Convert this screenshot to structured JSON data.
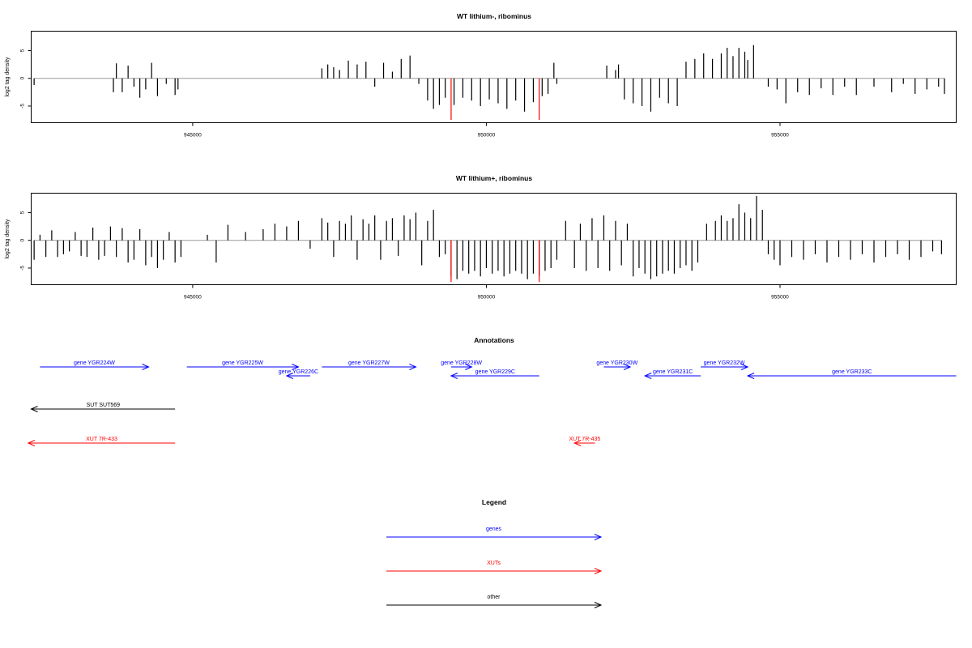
{
  "chart_data": [
    {
      "type": "bar",
      "title": "WT lithium-, ribominus",
      "ylabel": "log2 tag density",
      "xlabel": "",
      "xlim": [
        942250,
        958000
      ],
      "ylim": [
        -8,
        8.5
      ],
      "xticks": [
        945000,
        950000,
        955000
      ],
      "yticks": [
        5,
        0,
        -5
      ],
      "grid": false,
      "series": [
        {
          "color": "#000000",
          "x": [
            942300,
            943650,
            943700,
            943800,
            943900,
            944000,
            944100,
            944200,
            944300,
            944400,
            944550,
            944700,
            944750,
            947200,
            947300,
            947400,
            947500,
            947650,
            947800,
            947950,
            948100,
            948250,
            948400,
            948550,
            948700,
            948850,
            949000,
            949100,
            949200,
            949300,
            949450,
            949600,
            949750,
            949900,
            950050,
            950200,
            950350,
            950500,
            950650,
            950800,
            950950,
            951050,
            951150,
            951200,
            952050,
            952200,
            952250,
            952350,
            952500,
            952650,
            952800,
            952950,
            953100,
            953250,
            953400,
            953550,
            953700,
            953850,
            954000,
            954100,
            954200,
            954300,
            954400,
            954450,
            954550,
            954800,
            954950,
            955100,
            955300,
            955500,
            955700,
            955900,
            956100,
            956300,
            956600,
            956900,
            957100,
            957300,
            957500,
            957700,
            957800
          ],
          "values": [
            -1.2,
            -2.5,
            2.7,
            -2.5,
            2.3,
            -1.5,
            -3.5,
            -2.0,
            2.8,
            -3.2,
            -1.0,
            -3.0,
            -2.0,
            1.8,
            2.5,
            2.0,
            1.5,
            3.2,
            2.5,
            3.0,
            -1.5,
            2.8,
            1.2,
            3.5,
            4.1,
            -1.0,
            -4.0,
            -5.5,
            -4.8,
            -3.5,
            -4.8,
            -3.5,
            -4.0,
            -5.0,
            -3.8,
            -4.5,
            -5.5,
            -4.0,
            -6.0,
            -4.3,
            -3.2,
            -2.8,
            2.8,
            -1.0,
            2.3,
            1.5,
            2.5,
            -3.8,
            -4.5,
            -5.0,
            -6.0,
            -3.5,
            -4.5,
            -5.0,
            3.0,
            3.5,
            4.5,
            3.5,
            4.5,
            5.5,
            4.0,
            5.5,
            4.8,
            3.3,
            6.0,
            -1.5,
            -2.0,
            -4.5,
            -2.5,
            -3.0,
            -1.8,
            -3.0,
            -1.5,
            -3.0,
            -1.5,
            -2.5,
            -1.0,
            -2.8,
            -2.0,
            -1.5,
            -2.8
          ]
        },
        {
          "color": "#ff0000",
          "x": [
            949400,
            950900
          ],
          "values": [
            -7.5,
            -7.5
          ]
        }
      ]
    },
    {
      "type": "bar",
      "title": "WT lithium+, ribominus",
      "ylabel": "log2 tag density",
      "xlabel": "",
      "xlim": [
        942250,
        958000
      ],
      "ylim": [
        -8,
        8.5
      ],
      "xticks": [
        945000,
        950000,
        955000
      ],
      "yticks": [
        5,
        0,
        -5
      ],
      "grid": false,
      "series": [
        {
          "color": "#000000",
          "x": [
            942300,
            942400,
            942500,
            942600,
            942700,
            942800,
            942900,
            943000,
            943100,
            943200,
            943300,
            943400,
            943500,
            943600,
            943700,
            943800,
            943900,
            944000,
            944100,
            944200,
            944300,
            944400,
            944500,
            944600,
            944700,
            944800,
            945250,
            945400,
            945600,
            945900,
            946200,
            946400,
            946600,
            946800,
            947000,
            947200,
            947300,
            947400,
            947500,
            947600,
            947700,
            947800,
            947900,
            948000,
            948100,
            948200,
            948300,
            948400,
            948500,
            948600,
            948700,
            948800,
            948900,
            949000,
            949100,
            949200,
            949300,
            949400,
            949500,
            949600,
            949700,
            949800,
            949900,
            950000,
            950100,
            950200,
            950300,
            950400,
            950500,
            950600,
            950700,
            950800,
            950900,
            951000,
            951100,
            951200,
            951350,
            951500,
            951600,
            951700,
            951800,
            951900,
            952000,
            952100,
            952200,
            952300,
            952400,
            952500,
            952600,
            952700,
            952800,
            952900,
            953000,
            953100,
            953200,
            953300,
            953400,
            953500,
            953600,
            953750,
            953900,
            954000,
            954100,
            954200,
            954300,
            954400,
            954500,
            954600,
            954700,
            954800,
            954900,
            955000,
            955200,
            955400,
            955600,
            955800,
            956000,
            956200,
            956400,
            956600,
            956800,
            957000,
            957200,
            957400,
            957600,
            957750
          ],
          "values": [
            -3.5,
            1.0,
            -3.0,
            1.8,
            -3.0,
            -2.5,
            -2.0,
            1.5,
            -2.8,
            -3.0,
            2.3,
            -3.5,
            -2.8,
            2.5,
            -3.0,
            2.2,
            -4.0,
            -3.5,
            2.0,
            -4.5,
            -3.0,
            -5.0,
            -3.5,
            1.5,
            -4.0,
            -3.0,
            1.0,
            -4.0,
            2.8,
            1.5,
            2.0,
            3.0,
            2.5,
            3.5,
            -1.5,
            4.0,
            3.2,
            -3.0,
            3.5,
            3.0,
            4.5,
            -3.5,
            3.8,
            3.0,
            4.5,
            -3.5,
            3.5,
            4.0,
            -2.8,
            4.5,
            3.8,
            5.0,
            -4.5,
            3.5,
            5.5,
            -3.0,
            -2.5,
            -6.5,
            -7.0,
            -5.5,
            -6.0,
            -5.5,
            -6.5,
            -5.0,
            -6.0,
            -5.5,
            -6.5,
            -6.0,
            -5.5,
            -6.0,
            -7.0,
            -6.0,
            -6.5,
            -5.5,
            -5.0,
            -3.5,
            3.5,
            -5.0,
            3.0,
            -5.5,
            4.0,
            -5.0,
            4.5,
            -5.5,
            3.5,
            -4.5,
            3.0,
            -6.5,
            -5.0,
            -6.0,
            -7.0,
            -6.5,
            -6.0,
            -5.5,
            -6.0,
            -5.0,
            -4.5,
            -5.5,
            -4.0,
            3.0,
            3.5,
            4.5,
            3.5,
            4.0,
            6.5,
            5.0,
            4.0,
            8.0,
            5.5,
            -2.5,
            -3.5,
            -4.5,
            -3.0,
            -3.5,
            -2.5,
            -4.0,
            -3.0,
            -3.5,
            -2.5,
            -4.0,
            -3.0,
            -2.5,
            -3.5,
            -3.0,
            -2.0,
            -2.5
          ]
        },
        {
          "color": "#ff0000",
          "x": [
            949400,
            950900
          ],
          "values": [
            -7.5,
            -7.5
          ]
        }
      ]
    }
  ],
  "annotations": {
    "title": "Annotations",
    "features": [
      {
        "label": "gene YGR224W",
        "kind": "gene",
        "color": "#0000ff",
        "start": 942400,
        "end": 944250,
        "dir": "right",
        "row": 0
      },
      {
        "label": "gene YGR225W",
        "kind": "gene",
        "color": "#0000ff",
        "start": 944900,
        "end": 946800,
        "dir": "right",
        "row": 0
      },
      {
        "label": "gene YGR226C",
        "kind": "gene",
        "color": "#0000ff",
        "start": 946600,
        "end": 947000,
        "dir": "left",
        "row": 1
      },
      {
        "label": "gene YGR227W",
        "kind": "gene",
        "color": "#0000ff",
        "start": 947200,
        "end": 948800,
        "dir": "right",
        "row": 0
      },
      {
        "label": "gene YGR228W",
        "kind": "gene",
        "color": "#0000ff",
        "start": 949400,
        "end": 949750,
        "dir": "right",
        "row": 0
      },
      {
        "label": "gene YGR229C",
        "kind": "gene",
        "color": "#0000ff",
        "start": 949400,
        "end": 950900,
        "dir": "left",
        "row": 1
      },
      {
        "label": "gene YGR230W",
        "kind": "gene",
        "color": "#0000ff",
        "start": 952000,
        "end": 952450,
        "dir": "right",
        "row": 0
      },
      {
        "label": "gene YGR231C",
        "kind": "gene",
        "color": "#0000ff",
        "start": 952700,
        "end": 953650,
        "dir": "left",
        "row": 1
      },
      {
        "label": "gene YGR232W",
        "kind": "gene",
        "color": "#0000ff",
        "start": 953650,
        "end": 954450,
        "dir": "right",
        "row": 0
      },
      {
        "label": "gene YGR233C",
        "kind": "gene",
        "color": "#0000ff",
        "start": 954450,
        "end": 958000,
        "dir": "left",
        "row": 1
      },
      {
        "label": "SUT SUT569",
        "kind": "other",
        "color": "#000000",
        "start": 942250,
        "end": 944700,
        "dir": "left",
        "row": 2
      },
      {
        "label": "XUT 7R-433",
        "kind": "xut",
        "color": "#ff0000",
        "start": 942200,
        "end": 944700,
        "dir": "left",
        "row": 3
      },
      {
        "label": "XUT 7R-435",
        "kind": "xut",
        "color": "#ff0000",
        "start": 951500,
        "end": 951850,
        "dir": "left",
        "row": 3
      }
    ]
  },
  "legend": {
    "title": "Legend",
    "items": [
      {
        "label": "genes",
        "color": "#0000ff"
      },
      {
        "label": "XUTs",
        "color": "#ff0000"
      },
      {
        "label": "other",
        "color": "#000000"
      }
    ]
  }
}
